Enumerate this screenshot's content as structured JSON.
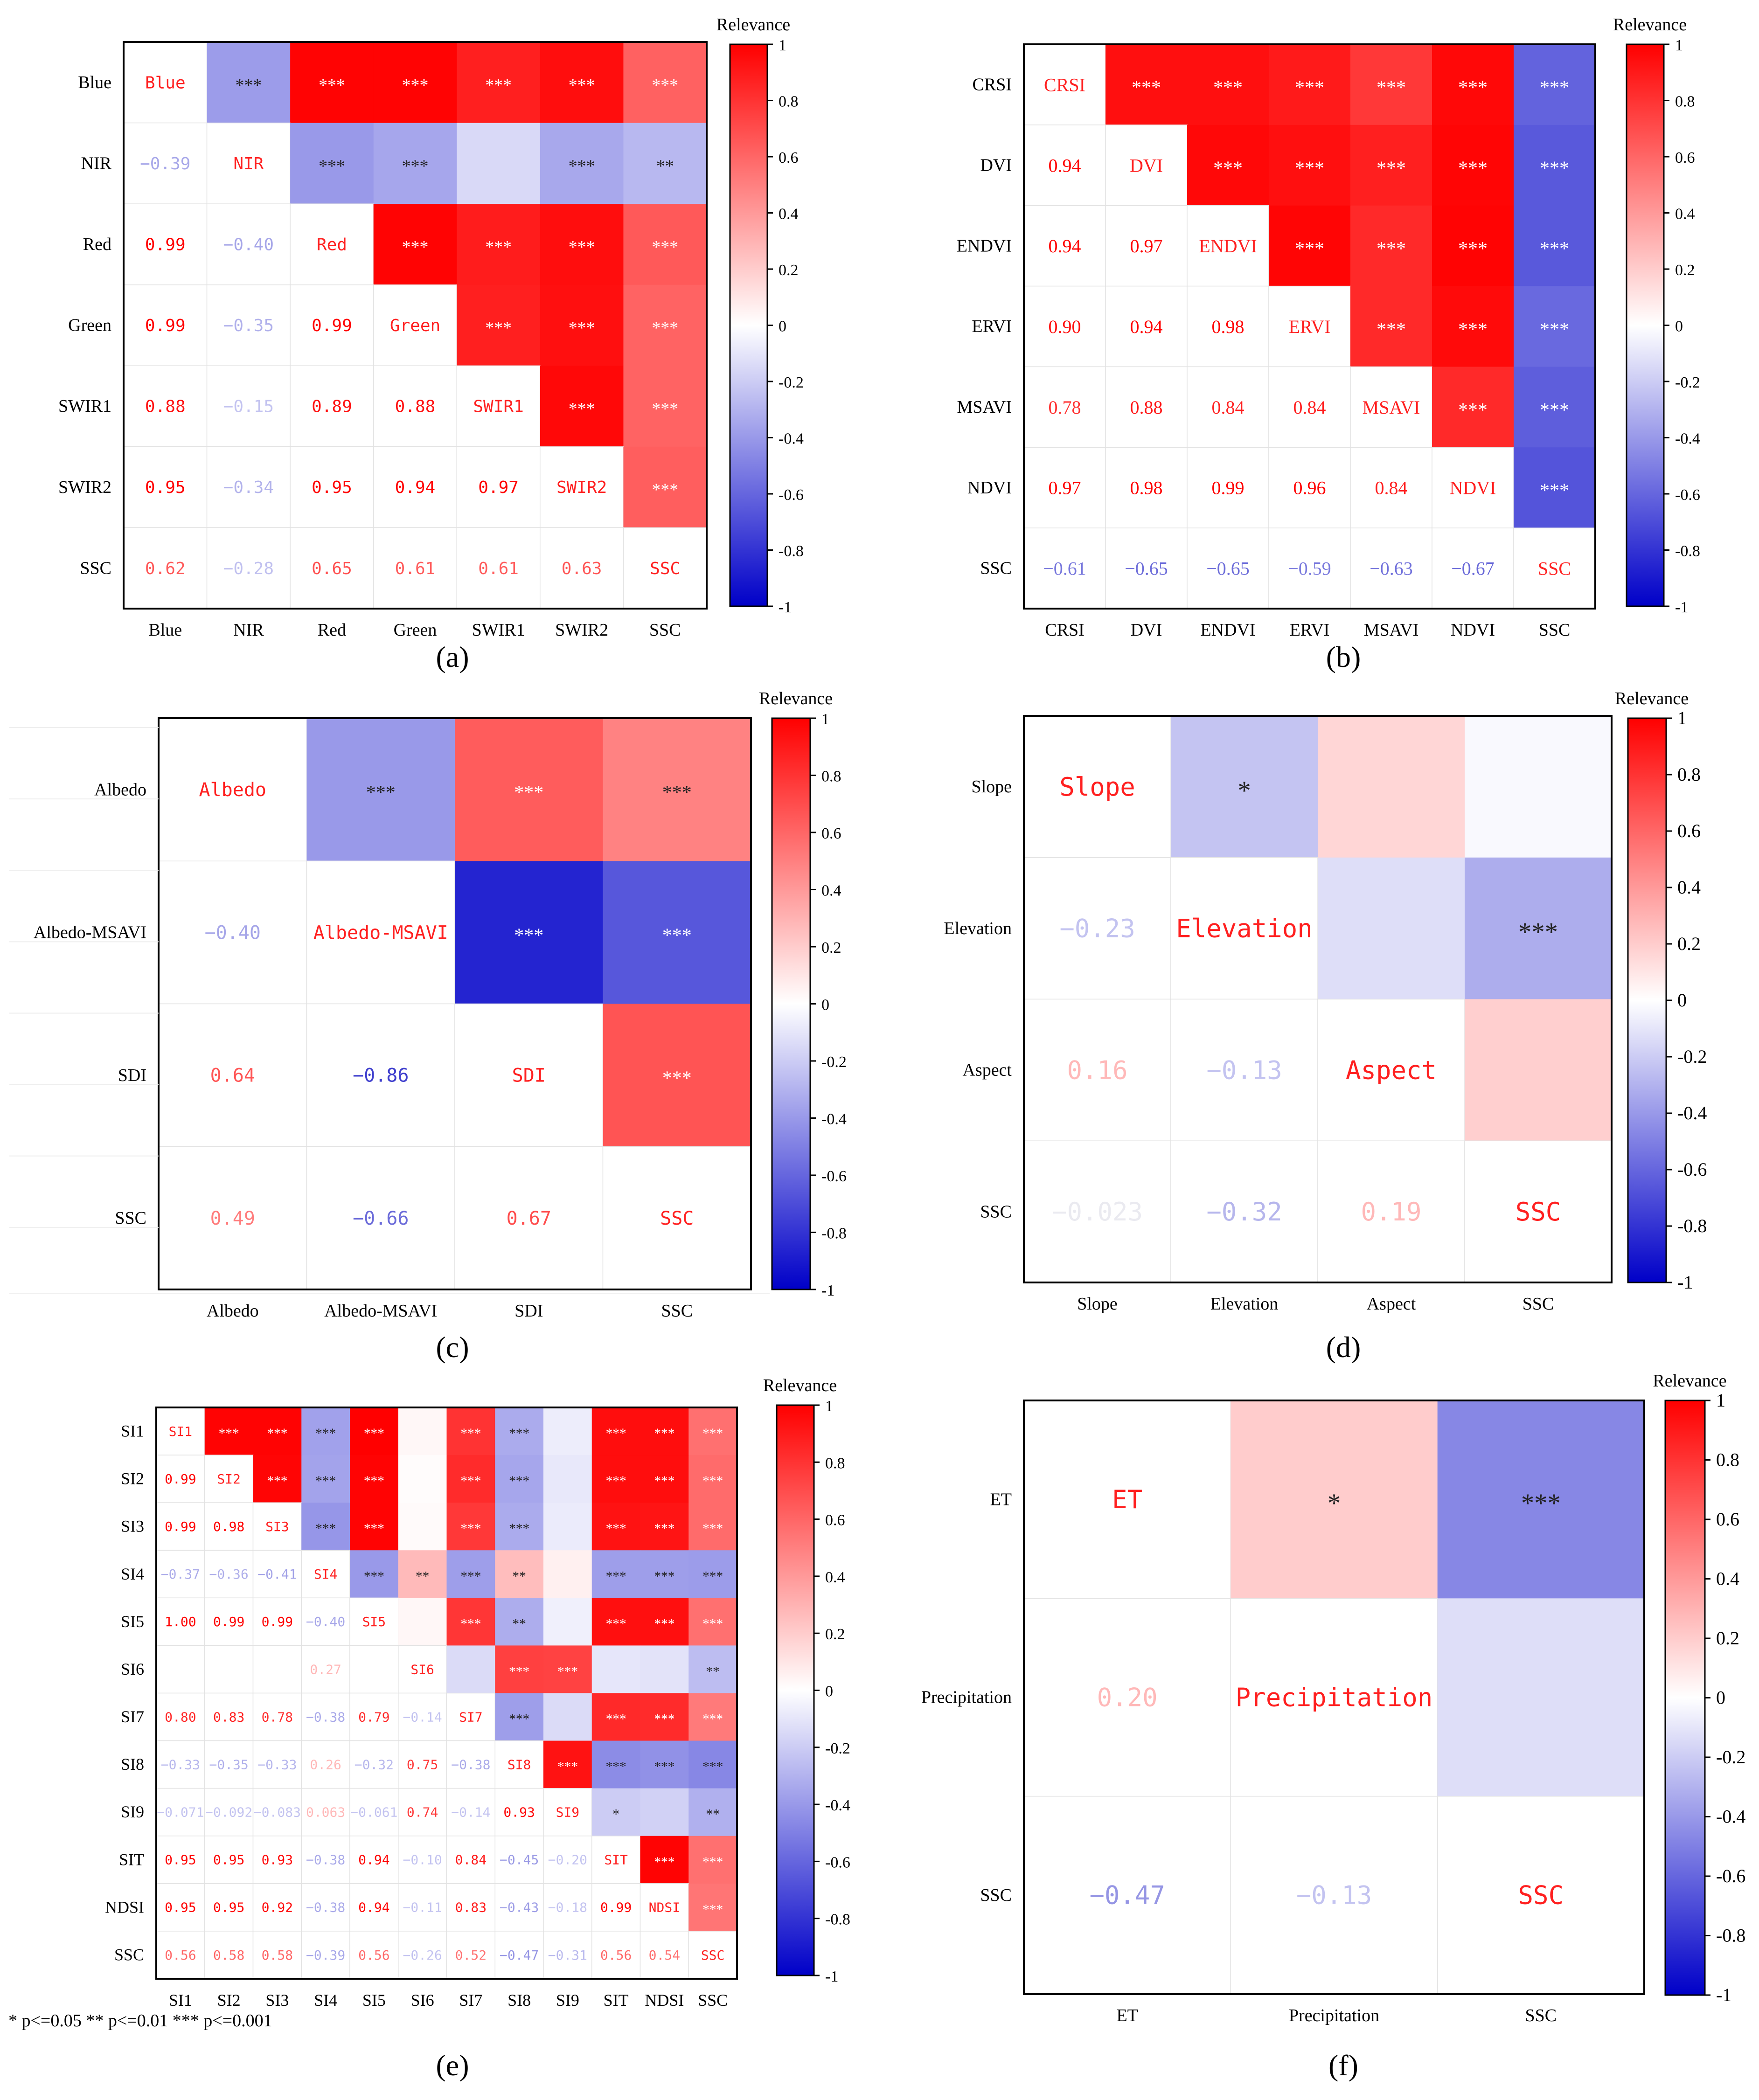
{
  "colorbar": {
    "title": "Relevance",
    "ticks": [
      "1",
      "0.8",
      "0.6",
      "0.4",
      "0.2",
      "0",
      "-0.2",
      "-0.4",
      "-0.6",
      "-0.8",
      "-1"
    ]
  },
  "colors": {
    "positive": "#ff0000",
    "negative": "#0000ff",
    "text_pos": "#ff0000",
    "text_neg": "#0000ff"
  },
  "footnote": "* p<=0.05  ** p<=0.01  *** p<=0.001",
  "chart_data": [
    {
      "type": "heatmap",
      "panel_label": "(a)",
      "value_range": [
        -1,
        1
      ],
      "labels": [
        "Blue",
        "NIR",
        "Red",
        "Green",
        "SWIR1",
        "SWIR2",
        "SSC"
      ],
      "matrix": [
        [
          1,
          -0.39,
          0.99,
          0.99,
          0.88,
          0.95,
          0.62
        ],
        [
          -0.39,
          1,
          -0.4,
          -0.35,
          -0.15,
          -0.34,
          -0.28
        ],
        [
          0.99,
          -0.4,
          1,
          0.99,
          0.89,
          0.95,
          0.65
        ],
        [
          0.99,
          -0.35,
          0.99,
          1,
          0.88,
          0.94,
          0.61
        ],
        [
          0.88,
          -0.15,
          0.89,
          0.88,
          1,
          0.97,
          0.61
        ],
        [
          0.95,
          -0.34,
          0.95,
          0.94,
          0.97,
          1,
          0.63
        ],
        [
          0.62,
          -0.28,
          0.65,
          0.61,
          0.61,
          0.63,
          1
        ]
      ],
      "lower_text": [
        [
          null,
          null,
          null,
          null,
          null,
          null,
          null
        ],
        [
          "−0.39",
          null,
          null,
          null,
          null,
          null,
          null
        ],
        [
          "0.99",
          "−0.40",
          null,
          null,
          null,
          null,
          null
        ],
        [
          "0.99",
          "−0.35",
          "0.99",
          null,
          null,
          null,
          null
        ],
        [
          "0.88",
          "−0.15",
          "0.89",
          "0.88",
          null,
          null,
          null
        ],
        [
          "0.95",
          "−0.34",
          "0.95",
          "0.94",
          "0.97",
          null,
          null
        ],
        [
          "0.62",
          "−0.28",
          "0.65",
          "0.61",
          "0.61",
          "0.63",
          null
        ]
      ],
      "stars": [
        [
          null,
          "***",
          "***",
          "***",
          "***",
          "***",
          "***"
        ],
        [
          null,
          null,
          "***",
          "***",
          "",
          "***",
          "**"
        ],
        [
          null,
          null,
          null,
          "***",
          "***",
          "***",
          "***"
        ],
        [
          null,
          null,
          null,
          null,
          "***",
          "***",
          "***"
        ],
        [
          null,
          null,
          null,
          null,
          null,
          "***",
          "***"
        ],
        [
          null,
          null,
          null,
          null,
          null,
          null,
          "***"
        ],
        [
          null,
          null,
          null,
          null,
          null,
          null,
          null
        ]
      ]
    },
    {
      "type": "heatmap",
      "panel_label": "(b)",
      "value_range": [
        -1,
        1
      ],
      "labels": [
        "CRSI",
        "DVI",
        "ENDVI",
        "ERVI",
        "MSAVI",
        "NDVI",
        "SSC"
      ],
      "matrix": [
        [
          1,
          0.94,
          0.94,
          0.9,
          0.78,
          0.97,
          -0.61
        ],
        [
          0.94,
          1,
          0.97,
          0.94,
          0.88,
          0.98,
          -0.65
        ],
        [
          0.94,
          0.97,
          1,
          0.98,
          0.84,
          0.99,
          -0.65
        ],
        [
          0.9,
          0.94,
          0.98,
          1,
          0.84,
          0.96,
          -0.59
        ],
        [
          0.78,
          0.88,
          0.84,
          0.84,
          1,
          0.84,
          -0.63
        ],
        [
          0.97,
          0.98,
          0.99,
          0.96,
          0.84,
          1,
          -0.67
        ],
        [
          -0.61,
          -0.65,
          -0.65,
          -0.59,
          -0.63,
          -0.67,
          1
        ]
      ],
      "lower_text": [
        [
          null,
          null,
          null,
          null,
          null,
          null,
          null
        ],
        [
          "0.94",
          null,
          null,
          null,
          null,
          null,
          null
        ],
        [
          "0.94",
          "0.97",
          null,
          null,
          null,
          null,
          null
        ],
        [
          "0.90",
          "0.94",
          "0.98",
          null,
          null,
          null,
          null
        ],
        [
          "0.78",
          "0.88",
          "0.84",
          "0.84",
          null,
          null,
          null
        ],
        [
          "0.97",
          "0.98",
          "0.99",
          "0.96",
          "0.84",
          null,
          null
        ],
        [
          "−0.61",
          "−0.65",
          "−0.65",
          "−0.59",
          "−0.63",
          "−0.67",
          null
        ]
      ],
      "stars": [
        [
          null,
          "***",
          "***",
          "***",
          "***",
          "***",
          "***"
        ],
        [
          null,
          null,
          "***",
          "***",
          "***",
          "***",
          "***"
        ],
        [
          null,
          null,
          null,
          "***",
          "***",
          "***",
          "***"
        ],
        [
          null,
          null,
          null,
          null,
          "***",
          "***",
          "***"
        ],
        [
          null,
          null,
          null,
          null,
          null,
          "***",
          "***"
        ],
        [
          null,
          null,
          null,
          null,
          null,
          null,
          "***"
        ],
        [
          null,
          null,
          null,
          null,
          null,
          null,
          null
        ]
      ]
    },
    {
      "type": "heatmap",
      "panel_label": "(c)",
      "value_range": [
        -1,
        1
      ],
      "labels": [
        "Albedo",
        "Albedo-MSAVI",
        "SDI",
        "SSC"
      ],
      "matrix": [
        [
          1,
          -0.4,
          0.64,
          0.49
        ],
        [
          -0.4,
          1,
          -0.86,
          -0.66
        ],
        [
          0.64,
          -0.86,
          1,
          0.67
        ],
        [
          0.49,
          -0.66,
          0.67,
          1
        ]
      ],
      "lower_text": [
        [
          null,
          null,
          null,
          null
        ],
        [
          "−0.40",
          null,
          null,
          null
        ],
        [
          "0.64",
          "−0.86",
          null,
          null
        ],
        [
          "0.49",
          "−0.66",
          "0.67",
          null
        ]
      ],
      "stars": [
        [
          null,
          "***",
          "***",
          "***"
        ],
        [
          null,
          null,
          "***",
          "***"
        ],
        [
          null,
          null,
          null,
          "***"
        ],
        [
          null,
          null,
          null,
          null
        ]
      ]
    },
    {
      "type": "heatmap",
      "panel_label": "(d)",
      "value_range": [
        -1,
        1
      ],
      "labels": [
        "Slope",
        "Elevation",
        "Aspect",
        "SSC"
      ],
      "matrix": [
        [
          1,
          -0.23,
          0.16,
          -0.023
        ],
        [
          -0.23,
          1,
          -0.13,
          -0.32
        ],
        [
          0.16,
          -0.13,
          1,
          0.19
        ],
        [
          -0.023,
          -0.32,
          0.19,
          1
        ]
      ],
      "lower_text": [
        [
          null,
          null,
          null,
          null
        ],
        [
          "−0.23",
          null,
          null,
          null
        ],
        [
          "0.16",
          "−0.13",
          null,
          null
        ],
        [
          "−0.023",
          "−0.32",
          "0.19",
          null
        ]
      ],
      "stars": [
        [
          null,
          "*",
          "",
          ""
        ],
        [
          null,
          null,
          "",
          "***"
        ],
        [
          null,
          null,
          null,
          ""
        ],
        [
          null,
          null,
          null,
          null
        ]
      ]
    },
    {
      "type": "heatmap",
      "panel_label": "(e)",
      "value_range": [
        -1,
        1
      ],
      "labels": [
        "SI1",
        "SI2",
        "SI3",
        "SI4",
        "SI5",
        "SI6",
        "SI7",
        "SI8",
        "SI9",
        "SIT",
        "NDSI",
        "SSC"
      ],
      "matrix": [
        [
          1,
          0.99,
          0.99,
          -0.37,
          1.0,
          0.03,
          0.8,
          -0.33,
          -0.07,
          0.95,
          0.95,
          0.56
        ],
        [
          0.99,
          1,
          0.98,
          -0.36,
          0.99,
          0.01,
          0.83,
          -0.35,
          -0.09,
          0.95,
          0.95,
          0.58
        ],
        [
          0.99,
          0.98,
          1,
          -0.41,
          0.99,
          0.02,
          0.78,
          -0.33,
          -0.08,
          0.93,
          0.92,
          0.58
        ],
        [
          -0.37,
          -0.36,
          -0.41,
          1,
          -0.4,
          0.27,
          -0.38,
          0.26,
          0.06,
          -0.38,
          -0.38,
          -0.39
        ],
        [
          1.0,
          0.99,
          0.99,
          -0.4,
          1,
          0.03,
          0.79,
          -0.32,
          -0.06,
          0.94,
          0.94,
          0.56
        ],
        [
          0.03,
          0.01,
          0.02,
          0.27,
          0.03,
          1,
          -0.14,
          0.75,
          0.74,
          -0.1,
          -0.11,
          -0.26
        ],
        [
          0.8,
          0.83,
          0.78,
          -0.38,
          0.79,
          -0.14,
          1,
          -0.38,
          -0.14,
          0.84,
          0.83,
          0.52
        ],
        [
          -0.33,
          -0.35,
          -0.33,
          0.26,
          -0.32,
          0.75,
          -0.38,
          1,
          0.93,
          -0.45,
          -0.43,
          -0.47
        ],
        [
          -0.07,
          -0.09,
          -0.08,
          0.06,
          -0.06,
          0.74,
          -0.14,
          0.93,
          1,
          -0.2,
          -0.18,
          -0.31
        ],
        [
          0.95,
          0.95,
          0.93,
          -0.38,
          0.94,
          -0.1,
          0.84,
          -0.45,
          -0.2,
          1,
          0.99,
          0.56
        ],
        [
          0.95,
          0.95,
          0.92,
          -0.38,
          0.94,
          -0.11,
          0.83,
          -0.43,
          -0.18,
          0.99,
          1,
          0.54
        ],
        [
          0.56,
          0.58,
          0.58,
          -0.39,
          0.56,
          -0.26,
          0.52,
          -0.47,
          -0.31,
          0.56,
          0.54,
          1
        ]
      ],
      "lower_text": [
        [
          null,
          null,
          null,
          null,
          null,
          null,
          null,
          null,
          null,
          null,
          null,
          null
        ],
        [
          "0.99",
          null,
          null,
          null,
          null,
          null,
          null,
          null,
          null,
          null,
          null,
          null
        ],
        [
          "0.99",
          "0.98",
          null,
          null,
          null,
          null,
          null,
          null,
          null,
          null,
          null,
          null
        ],
        [
          "−0.37",
          "−0.36",
          "−0.41",
          null,
          null,
          null,
          null,
          null,
          null,
          null,
          null,
          null
        ],
        [
          "1.00",
          "0.99",
          "0.99",
          "−0.40",
          null,
          null,
          null,
          null,
          null,
          null,
          null,
          null
        ],
        [
          "",
          "",
          "",
          "0.27",
          "",
          null,
          null,
          null,
          null,
          null,
          null,
          null
        ],
        [
          "0.80",
          "0.83",
          "0.78",
          "−0.38",
          "0.79",
          "−0.14",
          null,
          null,
          null,
          null,
          null,
          null
        ],
        [
          "−0.33",
          "−0.35",
          "−0.33",
          "0.26",
          "−0.32",
          "0.75",
          "−0.38",
          null,
          null,
          null,
          null,
          null
        ],
        [
          "−0.071",
          "−0.092",
          "−0.083",
          "0.063",
          "−0.061",
          "0.74",
          "−0.14",
          "0.93",
          null,
          null,
          null,
          null
        ],
        [
          "0.95",
          "0.95",
          "0.93",
          "−0.38",
          "0.94",
          "−0.10",
          "0.84",
          "−0.45",
          "−0.20",
          null,
          null,
          null
        ],
        [
          "0.95",
          "0.95",
          "0.92",
          "−0.38",
          "0.94",
          "−0.11",
          "0.83",
          "−0.43",
          "−0.18",
          "0.99",
          null,
          null
        ],
        [
          "0.56",
          "0.58",
          "0.58",
          "−0.39",
          "0.56",
          "−0.26",
          "0.52",
          "−0.47",
          "−0.31",
          "0.56",
          "0.54",
          null
        ]
      ],
      "stars": [
        [
          null,
          "***",
          "***",
          "***",
          "***",
          "",
          "***",
          "***",
          "",
          "***",
          "***",
          "***"
        ],
        [
          null,
          null,
          "***",
          "***",
          "***",
          "",
          "***",
          "***",
          "",
          "***",
          "***",
          "***"
        ],
        [
          null,
          null,
          null,
          "***",
          "***",
          "",
          "***",
          "***",
          "",
          "***",
          "***",
          "***"
        ],
        [
          null,
          null,
          null,
          null,
          "***",
          "**",
          "***",
          "**",
          "",
          "***",
          "***",
          "***"
        ],
        [
          null,
          null,
          null,
          null,
          null,
          "",
          "***",
          "**",
          "",
          "***",
          "***",
          "***"
        ],
        [
          null,
          null,
          null,
          null,
          null,
          null,
          "",
          "***",
          "***",
          "",
          "",
          "**"
        ],
        [
          null,
          null,
          null,
          null,
          null,
          null,
          null,
          "***",
          "",
          "***",
          "***",
          "***"
        ],
        [
          null,
          null,
          null,
          null,
          null,
          null,
          null,
          null,
          "***",
          "***",
          "***",
          "***"
        ],
        [
          null,
          null,
          null,
          null,
          null,
          null,
          null,
          null,
          null,
          "*",
          "",
          "**"
        ],
        [
          null,
          null,
          null,
          null,
          null,
          null,
          null,
          null,
          null,
          null,
          "***",
          "***"
        ],
        [
          null,
          null,
          null,
          null,
          null,
          null,
          null,
          null,
          null,
          null,
          null,
          "***"
        ],
        [
          null,
          null,
          null,
          null,
          null,
          null,
          null,
          null,
          null,
          null,
          null,
          null
        ]
      ]
    },
    {
      "type": "heatmap",
      "panel_label": "(f)",
      "value_range": [
        -1,
        1
      ],
      "labels": [
        "ET",
        "Precipitation",
        "SSC"
      ],
      "matrix": [
        [
          1,
          0.2,
          -0.47
        ],
        [
          0.2,
          1,
          -0.13
        ],
        [
          -0.47,
          -0.13,
          1
        ]
      ],
      "lower_text": [
        [
          null,
          null,
          null
        ],
        [
          "0.20",
          null,
          null
        ],
        [
          "−0.47",
          "−0.13",
          null
        ]
      ],
      "stars": [
        [
          null,
          "*",
          "***"
        ],
        [
          null,
          null,
          ""
        ],
        [
          null,
          null,
          null
        ]
      ]
    }
  ]
}
